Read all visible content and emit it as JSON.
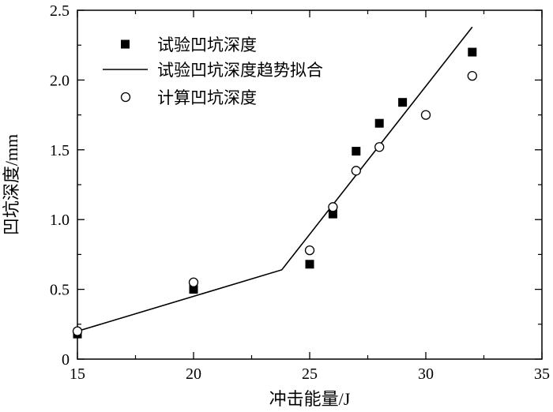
{
  "chart_data": {
    "type": "scatter",
    "xlabel": "冲击能量/J",
    "ylabel": "凹坑深度/mm",
    "xlim": [
      15,
      35
    ],
    "ylim": [
      0,
      2.5
    ],
    "xticks": [
      15,
      20,
      25,
      30,
      35
    ],
    "yticks": [
      0,
      0.5,
      1.0,
      1.5,
      2.0,
      2.5
    ],
    "ytick_labels": [
      "0",
      "0.5",
      "1.0",
      "1.5",
      "2.0",
      "2.5"
    ],
    "grid": false,
    "legend_position": "top-left",
    "series": [
      {
        "name": "试验凹坑深度",
        "marker": "filled-square",
        "color": "#000000",
        "points": [
          {
            "x": 15,
            "y": 0.18
          },
          {
            "x": 20,
            "y": 0.5
          },
          {
            "x": 25,
            "y": 0.68
          },
          {
            "x": 26,
            "y": 1.04
          },
          {
            "x": 27,
            "y": 1.49
          },
          {
            "x": 28,
            "y": 1.69
          },
          {
            "x": 29,
            "y": 1.84
          },
          {
            "x": 32,
            "y": 2.2
          }
        ]
      },
      {
        "name": "试验凹坑深度趋势拟合",
        "marker": "line",
        "color": "#000000",
        "points": [
          {
            "x": 15,
            "y": 0.2
          },
          {
            "x": 23.8,
            "y": 0.64
          },
          {
            "x": 32,
            "y": 2.38
          }
        ]
      },
      {
        "name": "计算凹坑深度",
        "marker": "open-circle",
        "color": "#000000",
        "points": [
          {
            "x": 15,
            "y": 0.2
          },
          {
            "x": 20,
            "y": 0.55
          },
          {
            "x": 25,
            "y": 0.78
          },
          {
            "x": 26,
            "y": 1.09
          },
          {
            "x": 27,
            "y": 1.35
          },
          {
            "x": 28,
            "y": 1.52
          },
          {
            "x": 30,
            "y": 1.75
          },
          {
            "x": 32,
            "y": 2.03
          }
        ]
      }
    ]
  }
}
